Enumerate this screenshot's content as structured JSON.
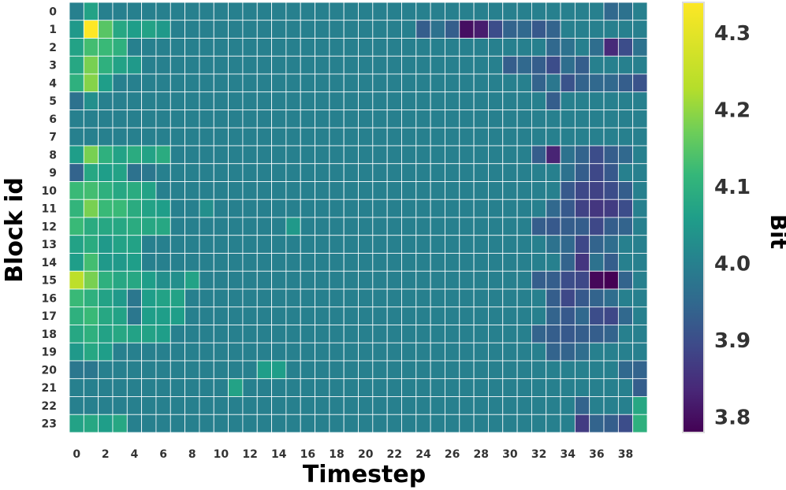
{
  "chart_data": {
    "type": "heatmap",
    "title": "",
    "xlabel": "Timestep",
    "ylabel": "Block id",
    "colorbar_label": "Bit",
    "colormap": "viridis",
    "vmin": 3.78,
    "vmax": 4.34,
    "colorbar_ticks": [
      "3.8",
      "3.9",
      "4.0",
      "4.1",
      "4.2",
      "4.3"
    ],
    "x_ticks": [
      "0",
      "2",
      "4",
      "6",
      "8",
      "10",
      "12",
      "14",
      "16",
      "18",
      "20",
      "22",
      "24",
      "26",
      "28",
      "30",
      "32",
      "34",
      "36",
      "38"
    ],
    "y_ticks": [
      "0",
      "1",
      "2",
      "3",
      "4",
      "5",
      "6",
      "7",
      "8",
      "9",
      "10",
      "11",
      "12",
      "13",
      "14",
      "15",
      "16",
      "17",
      "18",
      "19",
      "20",
      "21",
      "22",
      "23"
    ],
    "x": [
      0,
      1,
      2,
      3,
      4,
      5,
      6,
      7,
      8,
      9,
      10,
      11,
      12,
      13,
      14,
      15,
      16,
      17,
      18,
      19,
      20,
      21,
      22,
      23,
      24,
      25,
      26,
      27,
      28,
      29,
      30,
      31,
      32,
      33,
      34,
      35,
      36,
      37,
      38,
      39
    ],
    "y": [
      0,
      1,
      2,
      3,
      4,
      5,
      6,
      7,
      8,
      9,
      10,
      11,
      12,
      13,
      14,
      15,
      16,
      17,
      18,
      19,
      20,
      21,
      22,
      23
    ],
    "grid": true
  }
}
